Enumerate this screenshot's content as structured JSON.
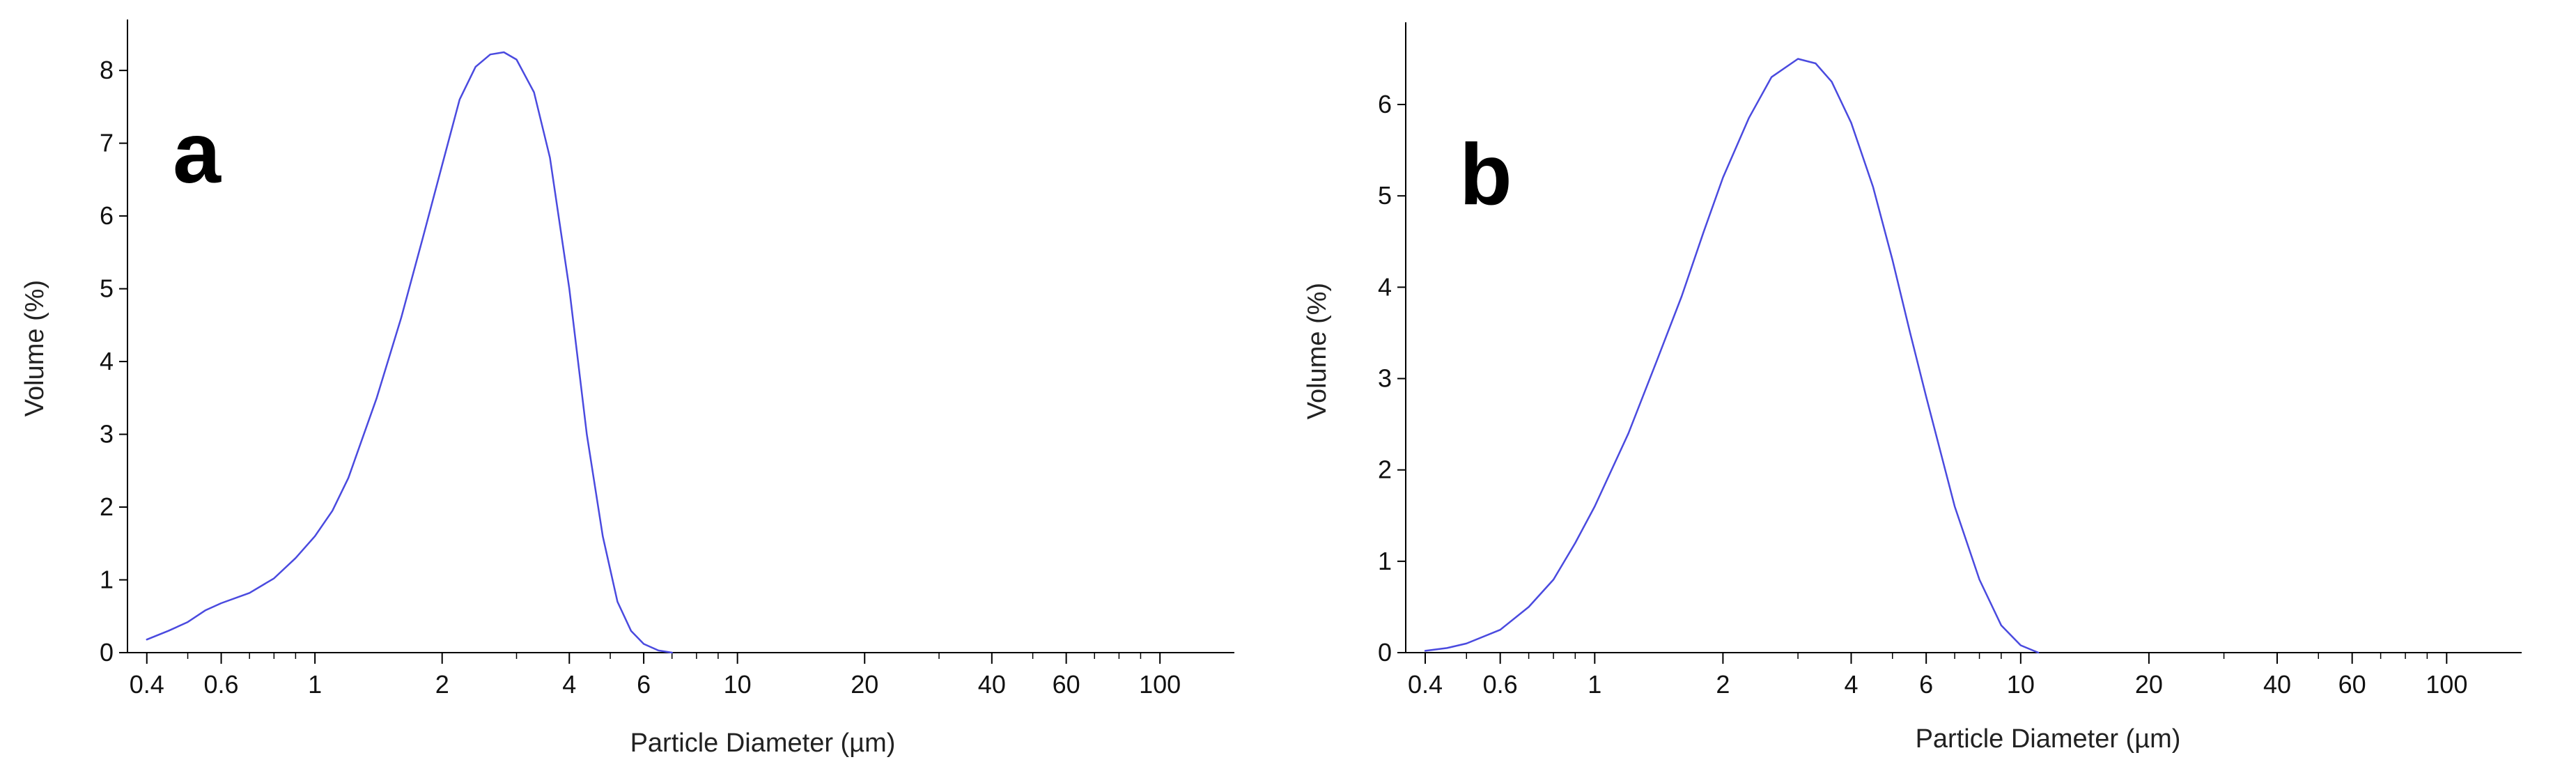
{
  "colors": {
    "series": "#4a4adf",
    "axis": "#000000",
    "background": "#ffffff"
  },
  "chart_data": [
    {
      "type": "line",
      "panel_label": "a",
      "xlabel": "Particle Diameter (µm)",
      "ylabel": "Volume (%)",
      "xscale": "log",
      "xlim": [
        0.36,
        150
      ],
      "ylim": [
        0,
        8.7
      ],
      "grid": false,
      "x_ticks": [
        0.4,
        0.6,
        1,
        2,
        4,
        6,
        10,
        20,
        40,
        60,
        100
      ],
      "x_tick_labels": [
        "0.4",
        "0.6",
        "1",
        "2",
        "4",
        "6",
        "10",
        "20",
        "40",
        "60",
        "100"
      ],
      "y_ticks": [
        0,
        1,
        2,
        3,
        4,
        5,
        6,
        7,
        8
      ],
      "y_tick_labels": [
        "0",
        "1",
        "2",
        "3",
        "4",
        "5",
        "6",
        "7",
        "8"
      ],
      "series": [
        {
          "x": [
            0.4,
            0.45,
            0.5,
            0.55,
            0.6,
            0.7,
            0.8,
            0.9,
            1.0,
            1.1,
            1.2,
            1.4,
            1.6,
            1.8,
            2.0,
            2.2,
            2.4,
            2.6,
            2.8,
            3.0,
            3.3,
            3.6,
            4.0,
            4.4,
            4.8,
            5.2,
            5.6,
            6.0,
            6.5,
            7.0
          ],
          "y": [
            0.18,
            0.3,
            0.42,
            0.58,
            0.68,
            0.82,
            1.02,
            1.3,
            1.6,
            1.95,
            2.4,
            3.5,
            4.6,
            5.7,
            6.7,
            7.6,
            8.05,
            8.22,
            8.25,
            8.15,
            7.7,
            6.8,
            5.0,
            3.0,
            1.6,
            0.7,
            0.3,
            0.12,
            0.03,
            0.0
          ]
        }
      ]
    },
    {
      "type": "line",
      "panel_label": "b",
      "xlabel": "Particle Diameter (µm)",
      "ylabel": "Volume (%)",
      "xscale": "log",
      "xlim": [
        0.36,
        150
      ],
      "ylim": [
        0,
        6.9
      ],
      "grid": false,
      "x_ticks": [
        0.4,
        0.6,
        1,
        2,
        4,
        6,
        10,
        20,
        40,
        60,
        100
      ],
      "x_tick_labels": [
        "0.4",
        "0.6",
        "1",
        "2",
        "4",
        "6",
        "10",
        "20",
        "40",
        "60",
        "100"
      ],
      "y_ticks": [
        0,
        1,
        2,
        3,
        4,
        5,
        6
      ],
      "y_tick_labels": [
        "0",
        "1",
        "2",
        "3",
        "4",
        "5",
        "6"
      ],
      "series": [
        {
          "x": [
            0.4,
            0.45,
            0.5,
            0.6,
            0.7,
            0.8,
            0.9,
            1.0,
            1.2,
            1.4,
            1.6,
            1.8,
            2.0,
            2.3,
            2.6,
            3.0,
            3.3,
            3.6,
            4.0,
            4.5,
            5.0,
            5.5,
            6.0,
            7.0,
            8.0,
            9.0,
            10.0,
            11.0
          ],
          "y": [
            0.02,
            0.05,
            0.1,
            0.25,
            0.5,
            0.8,
            1.2,
            1.6,
            2.4,
            3.2,
            3.9,
            4.6,
            5.2,
            5.85,
            6.3,
            6.5,
            6.45,
            6.25,
            5.8,
            5.1,
            4.3,
            3.5,
            2.8,
            1.6,
            0.8,
            0.3,
            0.08,
            0.0
          ]
        }
      ]
    }
  ]
}
